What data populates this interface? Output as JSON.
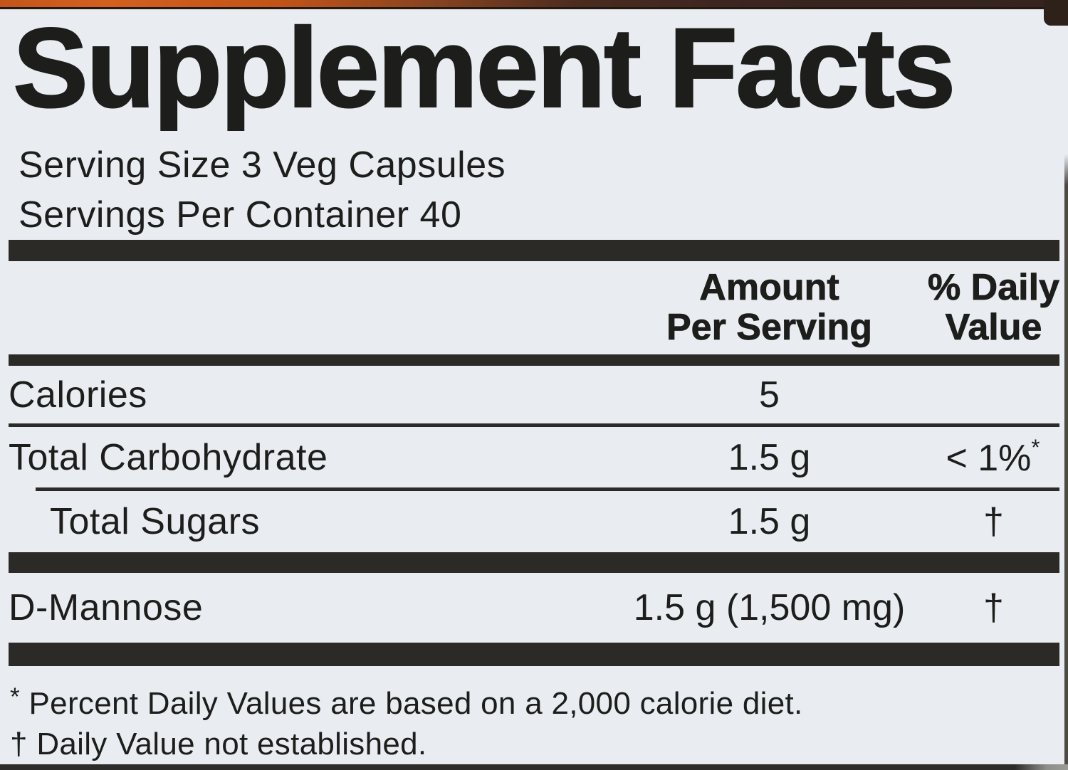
{
  "page": {
    "background_color": "#e9edf1",
    "text_color": "#1d1d1b",
    "bar_color": "#2b2a27",
    "accent_strip_left_color": "#d2601f",
    "accent_strip_right_color": "#352320"
  },
  "label": {
    "title": "Supplement Facts",
    "serving": {
      "size_line": "Serving Size 3 Veg Capsules",
      "per_container_line": "Servings Per Container 40"
    },
    "columns": {
      "amount_line1": "Amount",
      "amount_line2": "Per Serving",
      "dv_line1": "% Daily",
      "dv_line2": "Value"
    },
    "rows": [
      {
        "name": "Calories",
        "amount": "5",
        "dv": ""
      },
      {
        "name": "Total Carbohydrate",
        "amount": "1.5 g",
        "dv": "< 1%",
        "dv_sup": "*"
      },
      {
        "name": "Total Sugars",
        "amount": "1.5 g",
        "dv": "†"
      },
      {
        "name": "D-Mannose",
        "amount": "1.5 g (1,500 mg)",
        "dv": "†"
      }
    ],
    "footnotes": [
      {
        "marker": "*",
        "text": "Percent Daily Values are based on a 2,000 calorie diet."
      },
      {
        "marker": "†",
        "text": "Daily Value not established."
      }
    ]
  }
}
